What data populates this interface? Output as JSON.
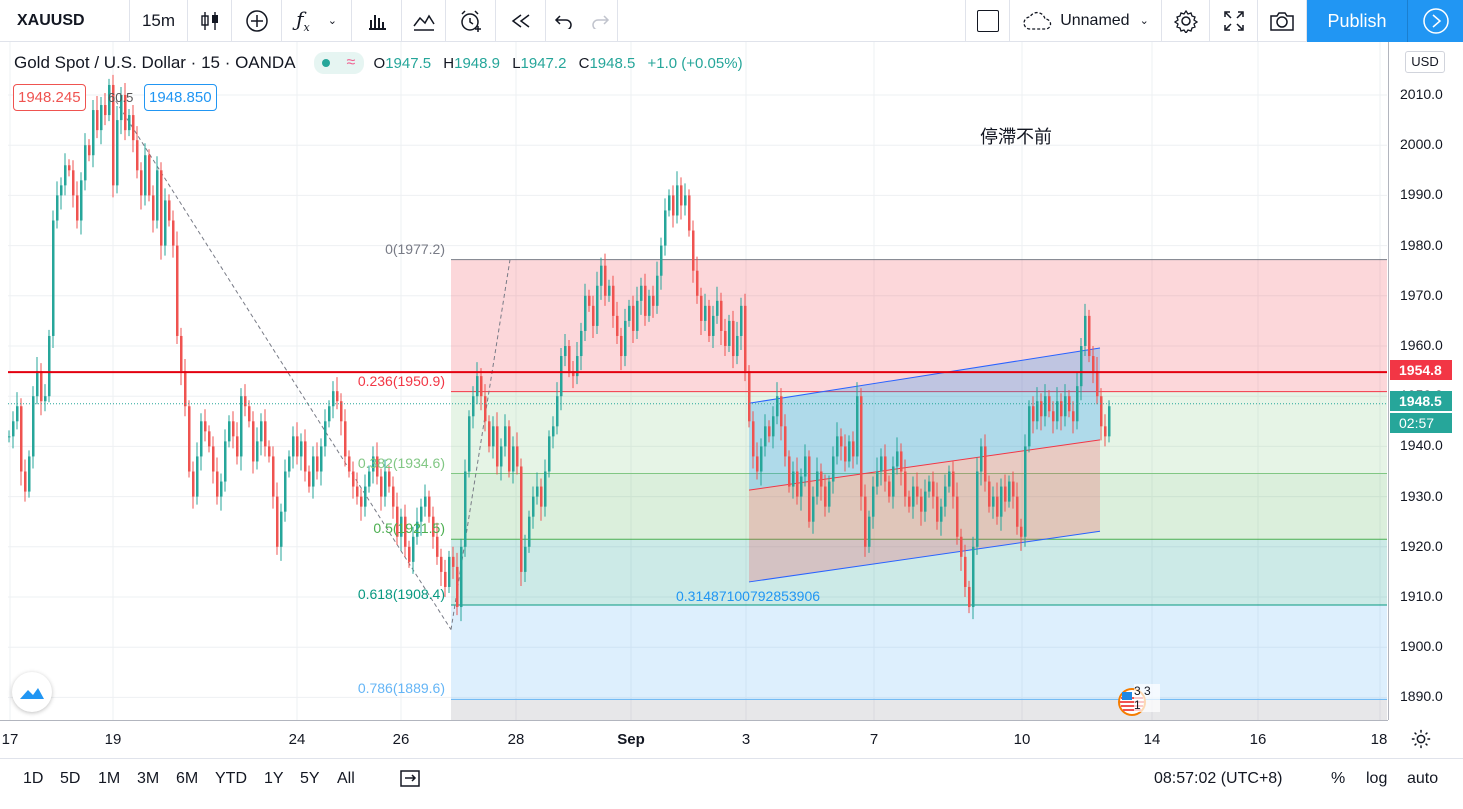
{
  "toolbar": {
    "symbol": "XAUUSD",
    "interval": "15m",
    "layout_name": "Unnamed",
    "publish_label": "Publish"
  },
  "legend": {
    "title": "Gold Spot / U.S. Dollar · 15 · OANDA",
    "open_k": "O",
    "open_v": "1947.5",
    "high_k": "H",
    "high_v": "1948.9",
    "low_k": "L",
    "low_v": "1947.2",
    "close_k": "C",
    "close_v": "1948.5",
    "change": "+1.0 (+0.05%)",
    "sell_price": "1948.245",
    "buy_price": "1948.850",
    "peak_label": "60.5"
  },
  "annotation_text": "停滯不前",
  "regression_label": "0.3148710079285390​6",
  "fib_levels": [
    {
      "label": "0(1977.2)",
      "price": 1977.2
    },
    {
      "label": "0.236(1950.9)",
      "price": 1950.9
    },
    {
      "label": "0.382(1934.6)",
      "price": 1934.6
    },
    {
      "label": "0.5(1921.5)",
      "price": 1921.5
    },
    {
      "label": "0.618(1908.4)",
      "price": 1908.4
    },
    {
      "label": "0.786(1889.6)",
      "price": 1889.6
    }
  ],
  "price_axis": {
    "currency": "USD",
    "ticks": [
      "2010.0",
      "2000.0",
      "1990.0",
      "1980.0",
      "1970.0",
      "1960.0",
      "1950.0",
      "1940.0",
      "1930.0",
      "1920.0",
      "1910.0",
      "1900.0",
      "1890.0"
    ],
    "horizontal_line": "1954.8",
    "last_price": "1948.5",
    "countdown": "02:57"
  },
  "time_axis": {
    "ticks": [
      "17",
      "19",
      "24",
      "26",
      "28",
      "Sep",
      "3",
      "7",
      "10",
      "14",
      "16",
      "18"
    ]
  },
  "bottom_bar": {
    "ranges": [
      "1D",
      "5D",
      "1M",
      "3M",
      "6M",
      "YTD",
      "1Y",
      "5Y",
      "All"
    ],
    "clock": "08:57:02 (UTC+8)",
    "percent": "%",
    "log": "log",
    "auto": "auto"
  },
  "event_badge": "3 3 1",
  "chart_data": {
    "type": "candlestick",
    "symbol": "XAUUSD",
    "interval": "15",
    "ylim": [
      1884,
      2016
    ],
    "x_ticks": [
      "17",
      "19",
      "24",
      "26",
      "28",
      "Sep",
      "3",
      "7",
      "10",
      "14",
      "16",
      "18"
    ],
    "y_ticks": [
      2010,
      2000,
      1990,
      1980,
      1970,
      1960,
      1950,
      1940,
      1930,
      1920,
      1910,
      1900,
      1890
    ],
    "price_path": [
      [
        0,
        1942
      ],
      [
        4,
        1945
      ],
      [
        8,
        1948
      ],
      [
        12,
        1935
      ],
      [
        16,
        1931
      ],
      [
        20,
        1938
      ],
      [
        24,
        1950
      ],
      [
        28,
        1955
      ],
      [
        32,
        1949
      ],
      [
        36,
        1950
      ],
      [
        40,
        1962
      ],
      [
        44,
        1985
      ],
      [
        48,
        1990
      ],
      [
        52,
        1992
      ],
      [
        56,
        1996
      ],
      [
        60,
        1995
      ],
      [
        64,
        1990
      ],
      [
        68,
        1985
      ],
      [
        72,
        1993
      ],
      [
        76,
        2000
      ],
      [
        80,
        1998
      ],
      [
        84,
        2007
      ],
      [
        88,
        2003
      ],
      [
        92,
        2008
      ],
      [
        96,
        2006
      ],
      [
        100,
        2012
      ],
      [
        104,
        1992
      ],
      [
        108,
        2005
      ],
      [
        112,
        2010
      ],
      [
        116,
        2003
      ],
      [
        120,
        2006
      ],
      [
        124,
        2001
      ],
      [
        128,
        1995
      ],
      [
        132,
        1990
      ],
      [
        136,
        1998
      ],
      [
        140,
        1990
      ],
      [
        144,
        1985
      ],
      [
        148,
        1995
      ],
      [
        152,
        1980
      ],
      [
        156,
        1989
      ],
      [
        160,
        1985
      ],
      [
        164,
        1980
      ],
      [
        168,
        1962
      ],
      [
        172,
        1955
      ],
      [
        176,
        1948
      ],
      [
        180,
        1935
      ],
      [
        184,
        1930
      ],
      [
        188,
        1938
      ],
      [
        192,
        1945
      ],
      [
        196,
        1943
      ],
      [
        200,
        1940
      ],
      [
        204,
        1935
      ],
      [
        208,
        1930
      ],
      [
        212,
        1933
      ],
      [
        216,
        1941
      ],
      [
        220,
        1945
      ],
      [
        224,
        1942
      ],
      [
        228,
        1938
      ],
      [
        232,
        1950
      ],
      [
        236,
        1948
      ],
      [
        240,
        1945
      ],
      [
        244,
        1937
      ],
      [
        248,
        1941
      ],
      [
        252,
        1945
      ],
      [
        256,
        1940
      ],
      [
        260,
        1938
      ],
      [
        264,
        1930
      ],
      [
        268,
        1920
      ],
      [
        272,
        1927
      ],
      [
        276,
        1935
      ],
      [
        280,
        1938
      ],
      [
        284,
        1942
      ],
      [
        288,
        1938
      ],
      [
        292,
        1941
      ],
      [
        296,
        1935
      ],
      [
        300,
        1932
      ],
      [
        304,
        1938
      ],
      [
        308,
        1935
      ],
      [
        312,
        1940
      ],
      [
        316,
        1945
      ],
      [
        320,
        1948
      ],
      [
        324,
        1951
      ],
      [
        328,
        1949
      ],
      [
        332,
        1945
      ],
      [
        336,
        1938
      ],
      [
        340,
        1935
      ],
      [
        344,
        1932
      ],
      [
        348,
        1930
      ],
      [
        352,
        1928
      ],
      [
        356,
        1932
      ],
      [
        360,
        1935
      ],
      [
        364,
        1938
      ],
      [
        368,
        1934
      ],
      [
        372,
        1930
      ],
      [
        376,
        1935
      ],
      [
        380,
        1932
      ],
      [
        384,
        1928
      ],
      [
        388,
        1922
      ],
      [
        392,
        1926
      ],
      [
        396,
        1920
      ],
      [
        400,
        1917
      ],
      [
        404,
        1922
      ],
      [
        408,
        1925
      ],
      [
        412,
        1928
      ],
      [
        416,
        1930
      ],
      [
        420,
        1926
      ],
      [
        424,
        1922
      ],
      [
        428,
        1918
      ],
      [
        432,
        1915
      ],
      [
        436,
        1912
      ],
      [
        440,
        1918
      ],
      [
        444,
        1916
      ],
      [
        448,
        1908
      ],
      [
        452,
        1920
      ],
      [
        456,
        1935
      ],
      [
        460,
        1946
      ],
      [
        464,
        1950
      ],
      [
        468,
        1954
      ],
      [
        472,
        1950
      ],
      [
        476,
        1945
      ],
      [
        480,
        1940
      ],
      [
        484,
        1944
      ],
      [
        488,
        1936
      ],
      [
        492,
        1940
      ],
      [
        496,
        1944
      ],
      [
        500,
        1935
      ],
      [
        504,
        1940
      ],
      [
        508,
        1936
      ],
      [
        512,
        1915
      ],
      [
        516,
        1920
      ],
      [
        520,
        1926
      ],
      [
        524,
        1930
      ],
      [
        528,
        1932
      ],
      [
        532,
        1928
      ],
      [
        536,
        1935
      ],
      [
        540,
        1942
      ],
      [
        544,
        1944
      ],
      [
        548,
        1950
      ],
      [
        552,
        1958
      ],
      [
        556,
        1960
      ],
      [
        560,
        1955
      ],
      [
        564,
        1954
      ],
      [
        568,
        1958
      ],
      [
        572,
        1963
      ],
      [
        576,
        1970
      ],
      [
        580,
        1968
      ],
      [
        584,
        1964
      ],
      [
        588,
        1972
      ],
      [
        592,
        1976
      ],
      [
        596,
        1970
      ],
      [
        600,
        1972
      ],
      [
        604,
        1966
      ],
      [
        608,
        1962
      ],
      [
        612,
        1958
      ],
      [
        616,
        1965
      ],
      [
        620,
        1968
      ],
      [
        624,
        1963
      ],
      [
        628,
        1969
      ],
      [
        632,
        1972
      ],
      [
        636,
        1966
      ],
      [
        640,
        1970
      ],
      [
        644,
        1968
      ],
      [
        648,
        1974
      ],
      [
        652,
        1980
      ],
      [
        656,
        1987
      ],
      [
        660,
        1990
      ],
      [
        664,
        1986
      ],
      [
        668,
        1992
      ],
      [
        672,
        1988
      ],
      [
        676,
        1990
      ],
      [
        680,
        1983
      ],
      [
        684,
        1975
      ],
      [
        688,
        1970
      ],
      [
        692,
        1965
      ],
      [
        696,
        1968
      ],
      [
        700,
        1962
      ],
      [
        704,
        1966
      ],
      [
        708,
        1969
      ],
      [
        712,
        1963
      ],
      [
        716,
        1960
      ],
      [
        720,
        1965
      ],
      [
        724,
        1958
      ],
      [
        728,
        1962
      ],
      [
        732,
        1968
      ],
      [
        736,
        1955
      ],
      [
        740,
        1945
      ],
      [
        744,
        1938
      ],
      [
        748,
        1935
      ],
      [
        752,
        1940
      ],
      [
        756,
        1944
      ],
      [
        760,
        1942
      ],
      [
        764,
        1946
      ],
      [
        768,
        1950
      ],
      [
        772,
        1944
      ],
      [
        776,
        1938
      ],
      [
        780,
        1932
      ],
      [
        784,
        1935
      ],
      [
        788,
        1930
      ],
      [
        792,
        1934
      ],
      [
        796,
        1938
      ],
      [
        800,
        1925
      ],
      [
        804,
        1930
      ],
      [
        808,
        1935
      ],
      [
        812,
        1932
      ],
      [
        816,
        1928
      ],
      [
        820,
        1933
      ],
      [
        824,
        1938
      ],
      [
        828,
        1942
      ],
      [
        832,
        1940
      ],
      [
        836,
        1937
      ],
      [
        840,
        1941
      ],
      [
        844,
        1938
      ],
      [
        848,
        1950
      ],
      [
        852,
        1930
      ],
      [
        856,
        1920
      ],
      [
        860,
        1926
      ],
      [
        864,
        1932
      ],
      [
        868,
        1935
      ],
      [
        872,
        1938
      ],
      [
        876,
        1933
      ],
      [
        880,
        1930
      ],
      [
        884,
        1936
      ],
      [
        888,
        1939
      ],
      [
        892,
        1935
      ],
      [
        896,
        1930
      ],
      [
        900,
        1928
      ],
      [
        904,
        1932
      ],
      [
        908,
        1930
      ],
      [
        912,
        1927
      ],
      [
        916,
        1931
      ],
      [
        920,
        1933
      ],
      [
        924,
        1930
      ],
      [
        928,
        1925
      ],
      [
        932,
        1928
      ],
      [
        936,
        1932
      ],
      [
        940,
        1935
      ],
      [
        944,
        1930
      ],
      [
        948,
        1922
      ],
      [
        952,
        1918
      ],
      [
        956,
        1912
      ],
      [
        960,
        1908
      ],
      [
        964,
        1920
      ],
      [
        968,
        1935
      ],
      [
        972,
        1940
      ],
      [
        976,
        1933
      ],
      [
        980,
        1928
      ],
      [
        984,
        1930
      ],
      [
        988,
        1926
      ],
      [
        992,
        1932
      ],
      [
        996,
        1929
      ],
      [
        1000,
        1933
      ],
      [
        1004,
        1930
      ],
      [
        1008,
        1924
      ],
      [
        1012,
        1922
      ],
      [
        1016,
        1940
      ],
      [
        1020,
        1948
      ],
      [
        1024,
        1945
      ],
      [
        1028,
        1949
      ],
      [
        1032,
        1946
      ],
      [
        1036,
        1950
      ],
      [
        1040,
        1947
      ],
      [
        1044,
        1945
      ],
      [
        1048,
        1949
      ],
      [
        1052,
        1946
      ],
      [
        1056,
        1950
      ],
      [
        1060,
        1947
      ],
      [
        1064,
        1945
      ],
      [
        1068,
        1952
      ],
      [
        1072,
        1960
      ],
      [
        1076,
        1966
      ],
      [
        1080,
        1958
      ],
      [
        1084,
        1955
      ],
      [
        1088,
        1950
      ],
      [
        1092,
        1944
      ],
      [
        1096,
        1942
      ],
      [
        1100,
        1948
      ]
    ],
    "horizontal_line_price": 1954.8,
    "last_price": 1948.5,
    "fibonacci": {
      "start_date": "27",
      "levels": [
        0,
        0.236,
        0.382,
        0.5,
        0.618,
        0.786
      ],
      "prices": [
        1977.2,
        1950.9,
        1934.6,
        1921.5,
        1908.4,
        1889.6
      ]
    },
    "regression_channel": {
      "upper": [
        1948.6,
        1959.6
      ],
      "middle": [
        1931.3,
        1941.3
      ],
      "lower": [
        1913.0,
        1923.1
      ],
      "value": "0.3148710079285390​6"
    }
  }
}
